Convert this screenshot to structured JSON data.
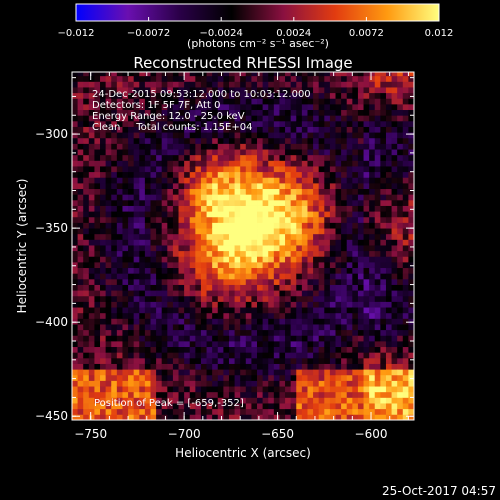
{
  "chart_data": {
    "type": "heatmap",
    "title": "Reconstructed RHESSI Image",
    "xlabel": "Heliocentric X (arcsec)",
    "ylabel": "Heliocentric Y (arcsec)",
    "xlim": [
      -760,
      -577
    ],
    "ylim": [
      -452,
      -267
    ],
    "x_ticks": [
      -750,
      -700,
      -650,
      -600
    ],
    "x_tick_labels": [
      "−750",
      "−700",
      "−650",
      "−600"
    ],
    "y_ticks": [
      -450,
      -400,
      -350,
      -300
    ],
    "y_tick_labels": [
      "−450",
      "−400",
      "−350",
      "−300"
    ],
    "colorbar": {
      "min": -0.012,
      "max": 0.012,
      "ticks": [
        -0.012,
        -0.0072,
        -0.0024,
        0.0024,
        0.0072,
        0.012
      ],
      "tick_labels": [
        "−0.012",
        "−0.0072",
        "−0.0024",
        "0.0024",
        "0.0072",
        "0.012"
      ],
      "units": "(photons cm⁻² s⁻¹ asec⁻²)",
      "colormap": [
        "#0000ff",
        "#6a0fb0",
        "#2a0048",
        "#000000",
        "#8a1040",
        "#e23c10",
        "#ff9a10",
        "#ffff80"
      ]
    },
    "peak": [
      -659,
      -352
    ],
    "annotations": [
      "24-Dec-2015 09:53:12.000 to 10:03:12.000",
      "Detectors: 1F 5F 7F, Att 0",
      "Energy Range: 12.0 - 25.0 keV",
      "Clean     Total counts: 1.15E+04"
    ],
    "peak_label": "Position of Peak = [-659,-352]",
    "grid": false
  },
  "footer": {
    "timestamp": "25-Oct-2017 04:57"
  }
}
